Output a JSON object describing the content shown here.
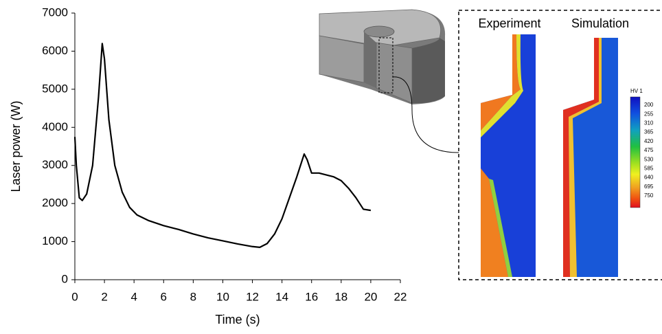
{
  "chart_data": {
    "type": "line",
    "x": [
      0,
      0.1,
      0.3,
      0.5,
      0.8,
      1.2,
      1.6,
      1.85,
      2.0,
      2.3,
      2.7,
      3.2,
      3.7,
      4.2,
      5,
      6,
      7,
      8,
      9,
      10,
      11,
      12,
      12.5,
      13,
      13.5,
      14,
      14.5,
      15,
      15.5,
      15.7,
      16,
      16.5,
      17,
      17.5,
      18,
      18.5,
      19,
      19.5,
      20
    ],
    "values": [
      3750,
      3000,
      2150,
      2080,
      2250,
      3000,
      4800,
      6200,
      5800,
      4200,
      3000,
      2300,
      1900,
      1700,
      1550,
      1420,
      1320,
      1200,
      1100,
      1020,
      940,
      870,
      850,
      950,
      1200,
      1600,
      2150,
      2700,
      3300,
      3150,
      2800,
      2800,
      2750,
      2700,
      2600,
      2400,
      2150,
      1850,
      1820
    ],
    "color": "#000000",
    "xlabel": "Time (s)",
    "ylabel": "Laser power (W)",
    "xlim": [
      0,
      22
    ],
    "xticks": [
      0,
      2,
      4,
      6,
      8,
      10,
      12,
      14,
      16,
      18,
      20,
      22
    ],
    "ylim": [
      0,
      7000
    ],
    "yticks": [
      0,
      1000,
      2000,
      3000,
      4000,
      5000,
      6000,
      7000
    ],
    "grid": false
  },
  "inset": {
    "experiment_label": "Experiment",
    "simulation_label": "Simulation",
    "colorbar": {
      "title": "HV 1",
      "labels": [
        "200",
        "255",
        "310",
        "365",
        "420",
        "475",
        "530",
        "585",
        "640",
        "695",
        "750"
      ]
    }
  }
}
